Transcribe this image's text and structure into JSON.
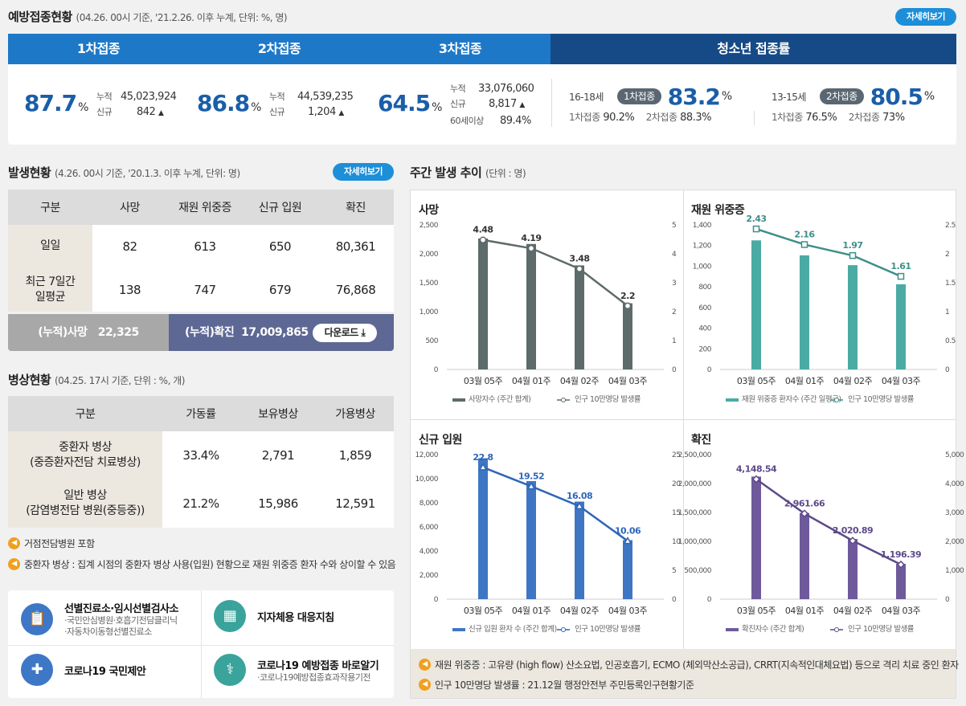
{
  "vaccine": {
    "title": "예방접종현황",
    "subtitle": "(04.26. 00시 기준, '21.2.26. 이후 누계, 단위: %, 명)",
    "more": "자세히보기",
    "tabs": [
      "1차접종",
      "2차접종",
      "3차접종",
      "청소년 접종률"
    ],
    "d1": {
      "rate": "87.7",
      "cum_label": "누적",
      "cum": "45,023,924",
      "new_label": "신규",
      "new": "842"
    },
    "d2": {
      "rate": "86.8",
      "cum_label": "누적",
      "cum": "44,539,235",
      "new_label": "신규",
      "new": "1,204"
    },
    "d3": {
      "rate": "64.5",
      "cum_label": "누적",
      "cum": "33,076,060",
      "new_label": "신규",
      "new": "8,817",
      "over60_label": "60세이상",
      "over60": "89.4%"
    },
    "teen1": {
      "age": "16-18세",
      "badge": "1차접종",
      "rate": "83.2",
      "a_label": "1차접종",
      "a": "90.2%",
      "b_label": "2차접종",
      "b": "88.3%"
    },
    "teen2": {
      "age": "13-15세",
      "badge": "2차접종",
      "rate": "80.5",
      "a_label": "1차접종",
      "a": "76.5%",
      "b_label": "2차접종",
      "b": "73%"
    },
    "pct": "%"
  },
  "outbreak": {
    "title": "발생현황",
    "subtitle": "(4.26. 00시 기준, '20.1.3. 이후 누계, 단위: 명)",
    "more": "자세히보기",
    "headers": [
      "구분",
      "사망",
      "재원 위중증",
      "신규 입원",
      "확진"
    ],
    "rows": [
      {
        "label": "일일",
        "v": [
          "82",
          "613",
          "650",
          "80,361"
        ]
      },
      {
        "label": "최근 7일간\n일평균",
        "v": [
          "138",
          "747",
          "679",
          "76,868"
        ]
      }
    ],
    "cum_death_label": "(누적)사망",
    "cum_death": "22,325",
    "cum_conf_label": "(누적)확진",
    "cum_conf": "17,009,865",
    "download": "다운로드"
  },
  "beds": {
    "title": "병상현황",
    "subtitle": "(04.25. 17시 기준, 단위 : %, 개)",
    "headers": [
      "구분",
      "가동률",
      "보유병상",
      "가용병상"
    ],
    "rows": [
      {
        "label": "중환자 병상\n(중증환자전담 치료병상)",
        "v": [
          "33.4%",
          "2,791",
          "1,859"
        ]
      },
      {
        "label": "일반 병상\n(감염병전담 병원(중등중))",
        "v": [
          "21.2%",
          "15,986",
          "12,591"
        ]
      }
    ],
    "notes": [
      "거점전담병원 포함",
      "중환자 병상 : 집계 시점의 중환자 병상 사용(입원) 현황으로 재원 위중증 환자 수와 상이할 수 있음"
    ]
  },
  "services": [
    {
      "title": "선별진료소·임시선별검사소",
      "desc": [
        "·국민안심병원·호흡기전담클리닉",
        "·자동차이동형선별진료소"
      ],
      "color": "#3d77c6",
      "icon": "clipboard-icon"
    },
    {
      "title": "지자체용 대응지침",
      "desc": [],
      "color": "#3aa39b",
      "icon": "building-icon"
    },
    {
      "title": "코로나19 국민제안",
      "desc": [],
      "color": "#3d77c6",
      "icon": "hospital-icon"
    },
    {
      "title": "코로나19 예방접종 바로알기",
      "desc": [
        "·코로나19예방접종효과작용기전"
      ],
      "color": "#3aa39b",
      "icon": "stethoscope-icon"
    }
  ],
  "weekly": {
    "title": "주간 발생 추이",
    "subtitle": "(단위 : 명)",
    "notes": [
      "재원 위중증 : 고유량 (high flow) 산소요법, 인공호흡기, ECMO (체외막산소공급), CRRT(지속적인대체요법) 등으로 격리 치료 중인 환자",
      "인구 10만명당 발생률 : 21.12월 행정안전부 주민등록인구현황기준"
    ]
  },
  "chart_data": [
    {
      "type": "bar",
      "title": "사망",
      "categories": [
        "03월 05주",
        "04월 01주",
        "04월 02주",
        "04월 03주"
      ],
      "series": [
        {
          "name": "사망자수 (주간 합계)",
          "values": [
            2265,
            2170,
            1800,
            1145
          ]
        },
        {
          "name": "인구 10만명당 발생률",
          "values": [
            4.48,
            4.19,
            3.48,
            2.2
          ]
        }
      ],
      "ylim": [
        0,
        2500
      ],
      "y2lim": [
        0,
        5
      ],
      "yticks": [
        "0",
        "500",
        "1,000",
        "1,500",
        "2,000",
        "2,500"
      ],
      "y2ticks": [
        "0",
        "1",
        "2",
        "3",
        "4",
        "5"
      ],
      "labels": [
        "4.48",
        "4.19",
        "3.48",
        "2.2"
      ],
      "bar_color": "#5d6b6b",
      "line_color": "#5d6b6b"
    },
    {
      "type": "bar",
      "title": "재원 위중증",
      "categories": [
        "03월 05주",
        "04월 01주",
        "04월 02주",
        "04월 03주"
      ],
      "series": [
        {
          "name": "재원 위중증 환자수 (주간 일평균)",
          "values": [
            1250,
            1105,
            1010,
            825
          ]
        },
        {
          "name": "인구 10만명당 발생률",
          "values": [
            2.43,
            2.16,
            1.97,
            1.61
          ]
        }
      ],
      "ylim": [
        0,
        1400
      ],
      "y2lim": [
        0,
        2.5
      ],
      "yticks": [
        "0",
        "200",
        "400",
        "600",
        "800",
        "1,000",
        "1,200",
        "1,400"
      ],
      "y2ticks": [
        "0",
        "0.5",
        "1",
        "1.5",
        "2",
        "2.5"
      ],
      "labels": [
        "2.43",
        "2.16",
        "1.97",
        "1.61"
      ],
      "bar_color": "#4aaba4",
      "line_color": "#3e8f8a"
    },
    {
      "type": "bar",
      "title": "신규 입원",
      "categories": [
        "03월 05주",
        "04월 01주",
        "04월 02주",
        "04월 03주"
      ],
      "series": [
        {
          "name": "신규 입원 환자 수 (주간 합계)",
          "values": [
            11700,
            9800,
            8100,
            4900
          ]
        },
        {
          "name": "인구 10만명당 발생률",
          "values": [
            22.8,
            19.52,
            16.08,
            10.06
          ]
        }
      ],
      "ylim": [
        0,
        12000
      ],
      "y2lim": [
        0,
        25
      ],
      "yticks": [
        "0",
        "2,000",
        "4,000",
        "6,000",
        "8,000",
        "10,000",
        "12,000"
      ],
      "y2ticks": [
        "0",
        "5",
        "10",
        "15",
        "20",
        "25"
      ],
      "labels": [
        "22.8",
        "19.52",
        "16.08",
        "10.06"
      ],
      "bar_color": "#3f76c4",
      "line_color": "#2f66b8"
    },
    {
      "type": "bar",
      "title": "확진",
      "categories": [
        "03월 05주",
        "04월 01주",
        "04월 02주",
        "04월 03주"
      ],
      "series": [
        {
          "name": "확진자수 (주간 합계)",
          "values": [
            2120000,
            1490000,
            1040000,
            610000
          ]
        },
        {
          "name": "인구 10만명당 발생률",
          "values": [
            4148.54,
            2961.66,
            2020.89,
            1196.39
          ]
        }
      ],
      "ylim": [
        0,
        2500000
      ],
      "y2lim": [
        0,
        5000
      ],
      "yticks": [
        "0",
        "500,000",
        "1,000,000",
        "1,500,000",
        "2,000,000",
        "2,500,000"
      ],
      "y2ticks": [
        "0",
        "1,000",
        "2,000",
        "3,000",
        "4,000",
        "5,000"
      ],
      "labels": [
        "4,148.54",
        "2,961.66",
        "2,020.89",
        "1,196.39"
      ],
      "bar_color": "#6e5a9b",
      "line_color": "#5d4a8a"
    }
  ]
}
